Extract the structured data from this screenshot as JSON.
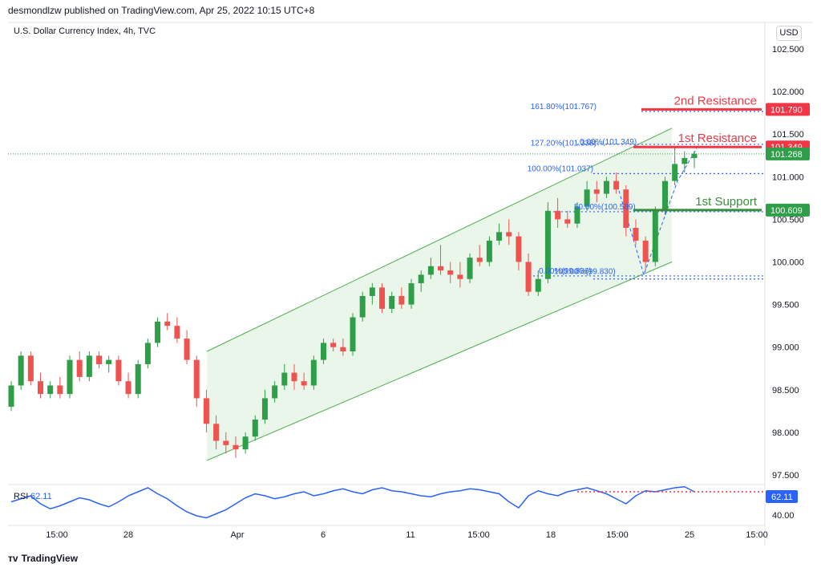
{
  "header": {
    "published": "desmondlzw published on TradingView.com, Apr 25, 2022 10:15 UTC+8",
    "symbol": "U.S. Dollar Currency Index, 4h, TVC",
    "currency": "USD"
  },
  "footer": {
    "brand": "TradingView",
    "logo": "tv-logo-icon"
  },
  "colors": {
    "bull": "#26a69a",
    "bullBody": "#2e9e48",
    "bear": "#ef5350",
    "channelFill": "#e9f6e9",
    "channelLine": "#4caf50",
    "fib": "#2962ff",
    "resistance": "#f23645",
    "support": "#388e3c",
    "rsi": "#2962ff"
  },
  "chart_data": {
    "type": "candlestick",
    "y_axis": {
      "min": 97.5,
      "max": 102.75,
      "ticks": [
        "102.500",
        "102.000",
        "101.500",
        "101.000",
        "100.500",
        "100.000",
        "99.500",
        "99.000",
        "98.500",
        "98.000",
        "97.500"
      ]
    },
    "x_axis": {
      "ticks": [
        "15:00",
        "28",
        "Apr",
        "6",
        "11",
        "15:00",
        "18",
        "15:00",
        "25",
        "15:00"
      ]
    },
    "price_tags": [
      {
        "label": "101.790",
        "value": 101.79,
        "color": "#f23645"
      },
      {
        "label": "101.349",
        "value": 101.349,
        "color": "#f23645"
      },
      {
        "label": "101.268",
        "value": 101.268,
        "color": "#2e9e48"
      },
      {
        "label": "100.609",
        "value": 100.609,
        "color": "#2e9e48"
      }
    ],
    "levels": [
      {
        "name": "2nd Resistance",
        "value": 101.79,
        "color": "#f23645"
      },
      {
        "name": "1st Resistance",
        "value": 101.349,
        "color": "#f23645"
      },
      {
        "name": "1st Support",
        "value": 100.609,
        "color": "#388e3c"
      }
    ],
    "fib_labels": [
      {
        "text": "161.80%(101.767)",
        "value": 101.767
      },
      {
        "text": "127.20%(101.338)",
        "value": 101.338
      },
      {
        "text": "0.00%(101.349)",
        "value": 101.349
      },
      {
        "text": "100.00%(101.037)",
        "value": 101.037
      },
      {
        "text": "50.00%(100.589)",
        "value": 100.589
      },
      {
        "text": "100.00%(99.830)",
        "value": 99.83
      },
      {
        "text": "0.00%(99.836)",
        "value": 99.836
      }
    ],
    "candles": [
      [
        98.3,
        98.6,
        98.25,
        98.55
      ],
      [
        98.55,
        98.95,
        98.5,
        98.9
      ],
      [
        98.9,
        98.95,
        98.55,
        98.6
      ],
      [
        98.6,
        98.7,
        98.4,
        98.45
      ],
      [
        98.45,
        98.6,
        98.4,
        98.55
      ],
      [
        98.55,
        98.65,
        98.4,
        98.45
      ],
      [
        98.45,
        98.9,
        98.4,
        98.85
      ],
      [
        98.85,
        98.95,
        98.6,
        98.65
      ],
      [
        98.65,
        98.95,
        98.6,
        98.9
      ],
      [
        98.9,
        98.95,
        98.75,
        98.8
      ],
      [
        98.8,
        98.9,
        98.7,
        98.85
      ],
      [
        98.85,
        98.9,
        98.55,
        98.6
      ],
      [
        98.6,
        98.7,
        98.4,
        98.45
      ],
      [
        98.45,
        98.85,
        98.4,
        98.8
      ],
      [
        98.8,
        99.1,
        98.75,
        99.05
      ],
      [
        99.05,
        99.35,
        99.0,
        99.3
      ],
      [
        99.3,
        99.4,
        99.2,
        99.25
      ],
      [
        99.25,
        99.35,
        99.05,
        99.1
      ],
      [
        99.1,
        99.2,
        98.8,
        98.85
      ],
      [
        98.85,
        98.9,
        98.3,
        98.4
      ],
      [
        98.4,
        98.5,
        98.0,
        98.1
      ],
      [
        98.1,
        98.2,
        97.8,
        97.9
      ],
      [
        97.9,
        98.0,
        97.75,
        97.85
      ],
      [
        97.85,
        97.95,
        97.7,
        97.8
      ],
      [
        97.8,
        98.0,
        97.75,
        97.95
      ],
      [
        97.95,
        98.2,
        97.9,
        98.15
      ],
      [
        98.15,
        98.5,
        98.1,
        98.4
      ],
      [
        98.4,
        98.6,
        98.35,
        98.55
      ],
      [
        98.55,
        98.8,
        98.5,
        98.7
      ],
      [
        98.7,
        98.8,
        98.5,
        98.6
      ],
      [
        98.6,
        98.7,
        98.5,
        98.55
      ],
      [
        98.55,
        98.9,
        98.5,
        98.85
      ],
      [
        98.85,
        99.1,
        98.8,
        99.05
      ],
      [
        99.05,
        99.1,
        98.95,
        99.0
      ],
      [
        99.0,
        99.1,
        98.9,
        98.95
      ],
      [
        98.95,
        99.4,
        98.9,
        99.35
      ],
      [
        99.35,
        99.65,
        99.3,
        99.6
      ],
      [
        99.6,
        99.75,
        99.5,
        99.7
      ],
      [
        99.7,
        99.75,
        99.4,
        99.45
      ],
      [
        99.45,
        99.65,
        99.4,
        99.6
      ],
      [
        99.6,
        99.7,
        99.45,
        99.5
      ],
      [
        99.5,
        99.8,
        99.45,
        99.75
      ],
      [
        99.75,
        99.9,
        99.65,
        99.85
      ],
      [
        99.85,
        100.05,
        99.8,
        99.95
      ],
      [
        99.95,
        100.2,
        99.85,
        99.9
      ],
      [
        99.9,
        100.0,
        99.75,
        99.85
      ],
      [
        99.85,
        100.0,
        99.7,
        99.8
      ],
      [
        99.8,
        100.1,
        99.75,
        100.05
      ],
      [
        100.05,
        100.2,
        99.95,
        100.0
      ],
      [
        100.0,
        100.3,
        99.95,
        100.25
      ],
      [
        100.25,
        100.45,
        100.2,
        100.35
      ],
      [
        100.35,
        100.5,
        100.2,
        100.3
      ],
      [
        100.3,
        100.35,
        99.9,
        100.0
      ],
      [
        100.0,
        100.1,
        99.6,
        99.65
      ],
      [
        99.65,
        99.9,
        99.6,
        99.8
      ],
      [
        99.8,
        100.7,
        99.75,
        100.6
      ],
      [
        100.6,
        100.75,
        100.4,
        100.5
      ],
      [
        100.5,
        100.6,
        100.4,
        100.45
      ],
      [
        100.45,
        100.7,
        100.4,
        100.65
      ],
      [
        100.65,
        100.95,
        100.6,
        100.85
      ],
      [
        100.85,
        100.95,
        100.7,
        100.8
      ],
      [
        100.8,
        101.0,
        100.75,
        100.95
      ],
      [
        100.95,
        101.05,
        100.8,
        100.85
      ],
      [
        100.85,
        100.9,
        100.3,
        100.4
      ],
      [
        100.4,
        100.5,
        100.2,
        100.25
      ],
      [
        100.25,
        100.3,
        99.9,
        100.0
      ],
      [
        100.0,
        100.65,
        99.95,
        100.6
      ],
      [
        100.6,
        101.0,
        100.55,
        100.95
      ],
      [
        100.95,
        101.35,
        100.9,
        101.15
      ],
      [
        101.15,
        101.3,
        101.05,
        101.22
      ],
      [
        101.22,
        101.3,
        101.1,
        101.27
      ]
    ],
    "rsi": {
      "label": "RSI",
      "value": "62.11",
      "lines": [
        "62.11",
        "40.00"
      ],
      "values": [
        52,
        55,
        58,
        50,
        45,
        48,
        52,
        56,
        54,
        50,
        47,
        52,
        58,
        62,
        66,
        60,
        55,
        48,
        42,
        38,
        36,
        40,
        44,
        50,
        56,
        60,
        58,
        55,
        57,
        60,
        62,
        58,
        60,
        63,
        65,
        62,
        60,
        64,
        66,
        63,
        62,
        60,
        58,
        57,
        60,
        62,
        63,
        65,
        64,
        62,
        60,
        52,
        46,
        58,
        63,
        60,
        58,
        62,
        64,
        66,
        63,
        60,
        55,
        50,
        58,
        63,
        62,
        64,
        66,
        67,
        62
      ]
    },
    "channel": {
      "x0": 258,
      "x1": 838,
      "upper": [
        98.95,
        101.57
      ],
      "lower": [
        97.67,
        100.0
      ]
    }
  }
}
